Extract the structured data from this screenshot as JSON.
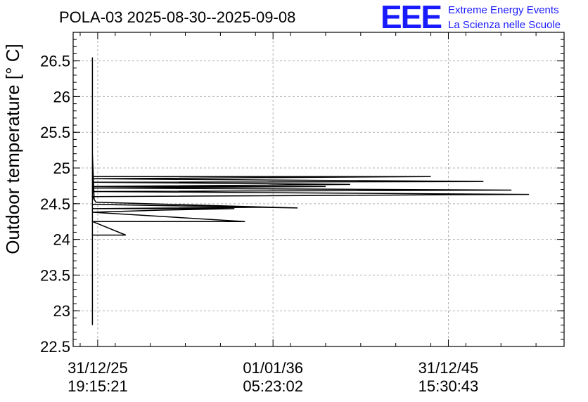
{
  "chart_data": {
    "type": "line",
    "title": "POLA-03 2025-08-30--2025-09-08",
    "ylabel": "Outdoor temperature [° C]",
    "xlabel": "",
    "ylim": [
      22.5,
      26.9
    ],
    "yticks": [
      22.5,
      23,
      23.5,
      24,
      24.5,
      25,
      25.5,
      26,
      26.5
    ],
    "ytick_labels": [
      "22.5",
      "23",
      "23.5",
      "24",
      "24.5",
      "25",
      "25.5",
      "26",
      "26.5"
    ],
    "xlim": [
      -0.07,
      1.33
    ],
    "xticks": [
      0,
      0.5,
      1
    ],
    "xtick_labels": [
      {
        "date": "31/12/25",
        "time": "19:15:21"
      },
      {
        "date": "01/01/36",
        "time": "05:23:02"
      },
      {
        "date": "31/12/45",
        "time": "15:30:43"
      }
    ],
    "grid": true,
    "series": [
      {
        "x": [
          -0.015,
          -0.015,
          -0.015,
          -0.01,
          -0.015,
          0.95,
          -0.015,
          1.1,
          -0.015,
          0.72,
          -0.015,
          0.65,
          -0.015,
          1.18,
          -0.015,
          1.23,
          -0.015,
          -0.005,
          0.57,
          -0.015,
          0.47,
          -0.015,
          0.39,
          0.18,
          -0.015,
          0.42,
          -0.015,
          0.08,
          -0.015,
          -0.015,
          -0.015
        ],
        "y": [
          26.55,
          22.8,
          25.2,
          24.55,
          24.88,
          24.88,
          24.85,
          24.81,
          24.8,
          24.77,
          24.74,
          24.74,
          24.72,
          24.69,
          24.67,
          24.63,
          24.6,
          24.52,
          24.44,
          24.49,
          24.45,
          24.43,
          24.43,
          24.41,
          24.38,
          24.25,
          24.25,
          24.06,
          24.06,
          24.55,
          23.9
        ]
      }
    ]
  },
  "logo": {
    "mark": "EEE",
    "line1": "Extreme Energy Events",
    "line2": "La Scienza nelle Scuole"
  }
}
